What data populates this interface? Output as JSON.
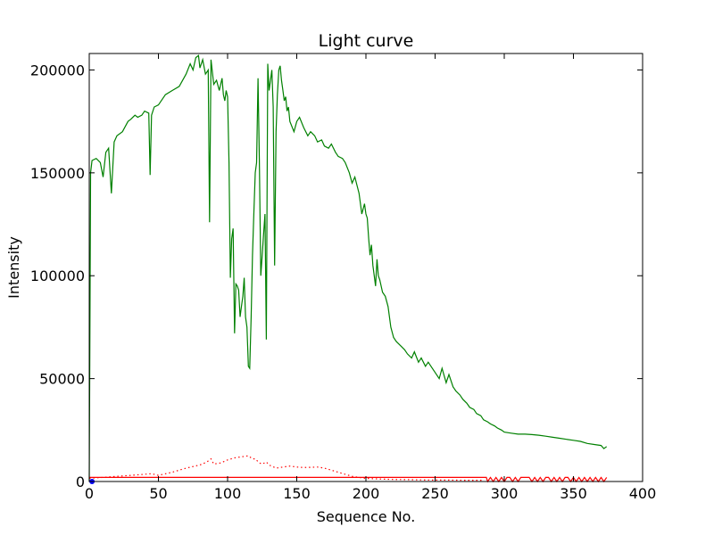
{
  "chart_data": {
    "type": "line",
    "title": "Light curve",
    "xlabel": "Sequence No.",
    "ylabel": "Intensity",
    "xlim": [
      0,
      400
    ],
    "ylim": [
      0,
      208000
    ],
    "xticks": [
      0,
      50,
      100,
      150,
      200,
      250,
      300,
      350,
      400
    ],
    "yticks": [
      0,
      50000,
      100000,
      150000,
      200000
    ],
    "grid": false,
    "legend": "none",
    "series": [
      {
        "color": "#008000",
        "style": "solid",
        "x": [
          0,
          1,
          2,
          5,
          8,
          10,
          12,
          14,
          16,
          18,
          20,
          24,
          28,
          30,
          33,
          35,
          38,
          40,
          43,
          44,
          45,
          47,
          50,
          55,
          60,
          65,
          70,
          73,
          75,
          77,
          79,
          80,
          82,
          84,
          85,
          86,
          87,
          88,
          90,
          92,
          94,
          96,
          97,
          98,
          99,
          100,
          101,
          102,
          103,
          104,
          105,
          106,
          107,
          108,
          109,
          110,
          111,
          112,
          113,
          114,
          115,
          116,
          117,
          118,
          119,
          120,
          121,
          122,
          123,
          124,
          125,
          126,
          127,
          128,
          129,
          130,
          131,
          132,
          133,
          134,
          135,
          136,
          137,
          138,
          139,
          140,
          141,
          142,
          143,
          144,
          145,
          148,
          150,
          152,
          155,
          158,
          160,
          163,
          165,
          168,
          170,
          173,
          175,
          178,
          180,
          183,
          185,
          188,
          190,
          192,
          195,
          197,
          199,
          200,
          201,
          202,
          203,
          204,
          205,
          206,
          207,
          208,
          209,
          210,
          212,
          214,
          216,
          218,
          220,
          222,
          225,
          228,
          230,
          233,
          235,
          238,
          240,
          243,
          245,
          248,
          250,
          253,
          255,
          258,
          260,
          263,
          265,
          268,
          270,
          273,
          275,
          278,
          280,
          283,
          285,
          288,
          290,
          293,
          295,
          298,
          300,
          305,
          310,
          315,
          320,
          325,
          330,
          335,
          340,
          345,
          350,
          355,
          360,
          365,
          370,
          372,
          374
        ],
        "y": [
          0,
          150000,
          156000,
          157000,
          155000,
          148000,
          160000,
          162000,
          140000,
          165000,
          168000,
          170000,
          175000,
          176000,
          178000,
          177000,
          178000,
          180000,
          179000,
          149000,
          178000,
          182000,
          183000,
          188000,
          190000,
          192000,
          198000,
          203000,
          200000,
          206000,
          207000,
          201000,
          205000,
          198000,
          199000,
          200000,
          126000,
          205000,
          193000,
          195000,
          190000,
          196000,
          188000,
          185000,
          190000,
          187000,
          155000,
          99000,
          118000,
          123000,
          72000,
          96000,
          95000,
          93000,
          80000,
          85000,
          90000,
          99000,
          80000,
          75000,
          56000,
          55000,
          80000,
          110000,
          130000,
          150000,
          155000,
          196000,
          156000,
          100000,
          110000,
          120000,
          130000,
          69000,
          203000,
          190000,
          195000,
          200000,
          182000,
          105000,
          170000,
          188000,
          200000,
          202000,
          195000,
          190000,
          185000,
          187000,
          180000,
          182000,
          175000,
          170000,
          175000,
          177000,
          172000,
          168000,
          170000,
          168000,
          165000,
          166000,
          163000,
          162000,
          164000,
          160000,
          158000,
          157000,
          155000,
          150000,
          145000,
          148000,
          140000,
          130000,
          135000,
          130000,
          128000,
          118000,
          110000,
          115000,
          105000,
          100000,
          95000,
          108000,
          100000,
          98000,
          92000,
          90000,
          85000,
          75000,
          70000,
          68000,
          66000,
          64000,
          62000,
          60000,
          63000,
          58000,
          60000,
          56000,
          58000,
          55000,
          53000,
          50000,
          55000,
          48000,
          52000,
          46000,
          44000,
          42000,
          40000,
          38000,
          36000,
          35000,
          33000,
          32000,
          30000,
          29000,
          28000,
          27000,
          26000,
          25000,
          24000,
          23500,
          23000,
          23000,
          22800,
          22500,
          22000,
          21500,
          21000,
          20500,
          20000,
          19500,
          18500,
          18000,
          17500,
          16000,
          17000
        ]
      },
      {
        "color": "#ff0000",
        "style": "dotted",
        "x": [
          0,
          5,
          10,
          20,
          30,
          40,
          45,
          50,
          60,
          70,
          80,
          85,
          88,
          90,
          95,
          100,
          105,
          110,
          115,
          118,
          120,
          123,
          125,
          128,
          130,
          135,
          140,
          145,
          150,
          155,
          160,
          165,
          170,
          175,
          180,
          185,
          190,
          195,
          200,
          210,
          220,
          230,
          240,
          250,
          260,
          270,
          280,
          285
        ],
        "y": [
          1500,
          1800,
          2000,
          2500,
          3000,
          3500,
          3800,
          3000,
          4500,
          6500,
          8000,
          9500,
          11000,
          8500,
          9000,
          10500,
          11500,
          12000,
          12500,
          11000,
          11000,
          9000,
          8500,
          9500,
          8000,
          6500,
          7000,
          7500,
          7000,
          6800,
          6900,
          7000,
          6500,
          5500,
          4500,
          3500,
          2500,
          2000,
          1500,
          1200,
          1000,
          900,
          800,
          700,
          700,
          600,
          600,
          600
        ]
      },
      {
        "color": "#ff0000",
        "style": "solid",
        "x": [
          0,
          287,
          288,
          290,
          292,
          294,
          296,
          298,
          300,
          302,
          304,
          306,
          308,
          310,
          312,
          314,
          316,
          318,
          320,
          322,
          324,
          326,
          328,
          330,
          332,
          334,
          336,
          338,
          340,
          342,
          344,
          346,
          348,
          350,
          352,
          354,
          356,
          358,
          360,
          362,
          364,
          366,
          368,
          370,
          372,
          374
        ],
        "y": [
          2000,
          2000,
          0,
          2000,
          0,
          2000,
          0,
          2000,
          0,
          2000,
          2000,
          0,
          2000,
          0,
          2000,
          2000,
          2000,
          2000,
          0,
          2000,
          0,
          2000,
          0,
          2000,
          2000,
          0,
          2000,
          0,
          2000,
          0,
          2000,
          2000,
          0,
          2000,
          0,
          2000,
          0,
          2000,
          0,
          2000,
          0,
          2000,
          0,
          2000,
          0,
          2000
        ]
      },
      {
        "color": "#0000ff",
        "style": "marker",
        "x": [
          2
        ],
        "y": [
          0
        ]
      }
    ]
  }
}
